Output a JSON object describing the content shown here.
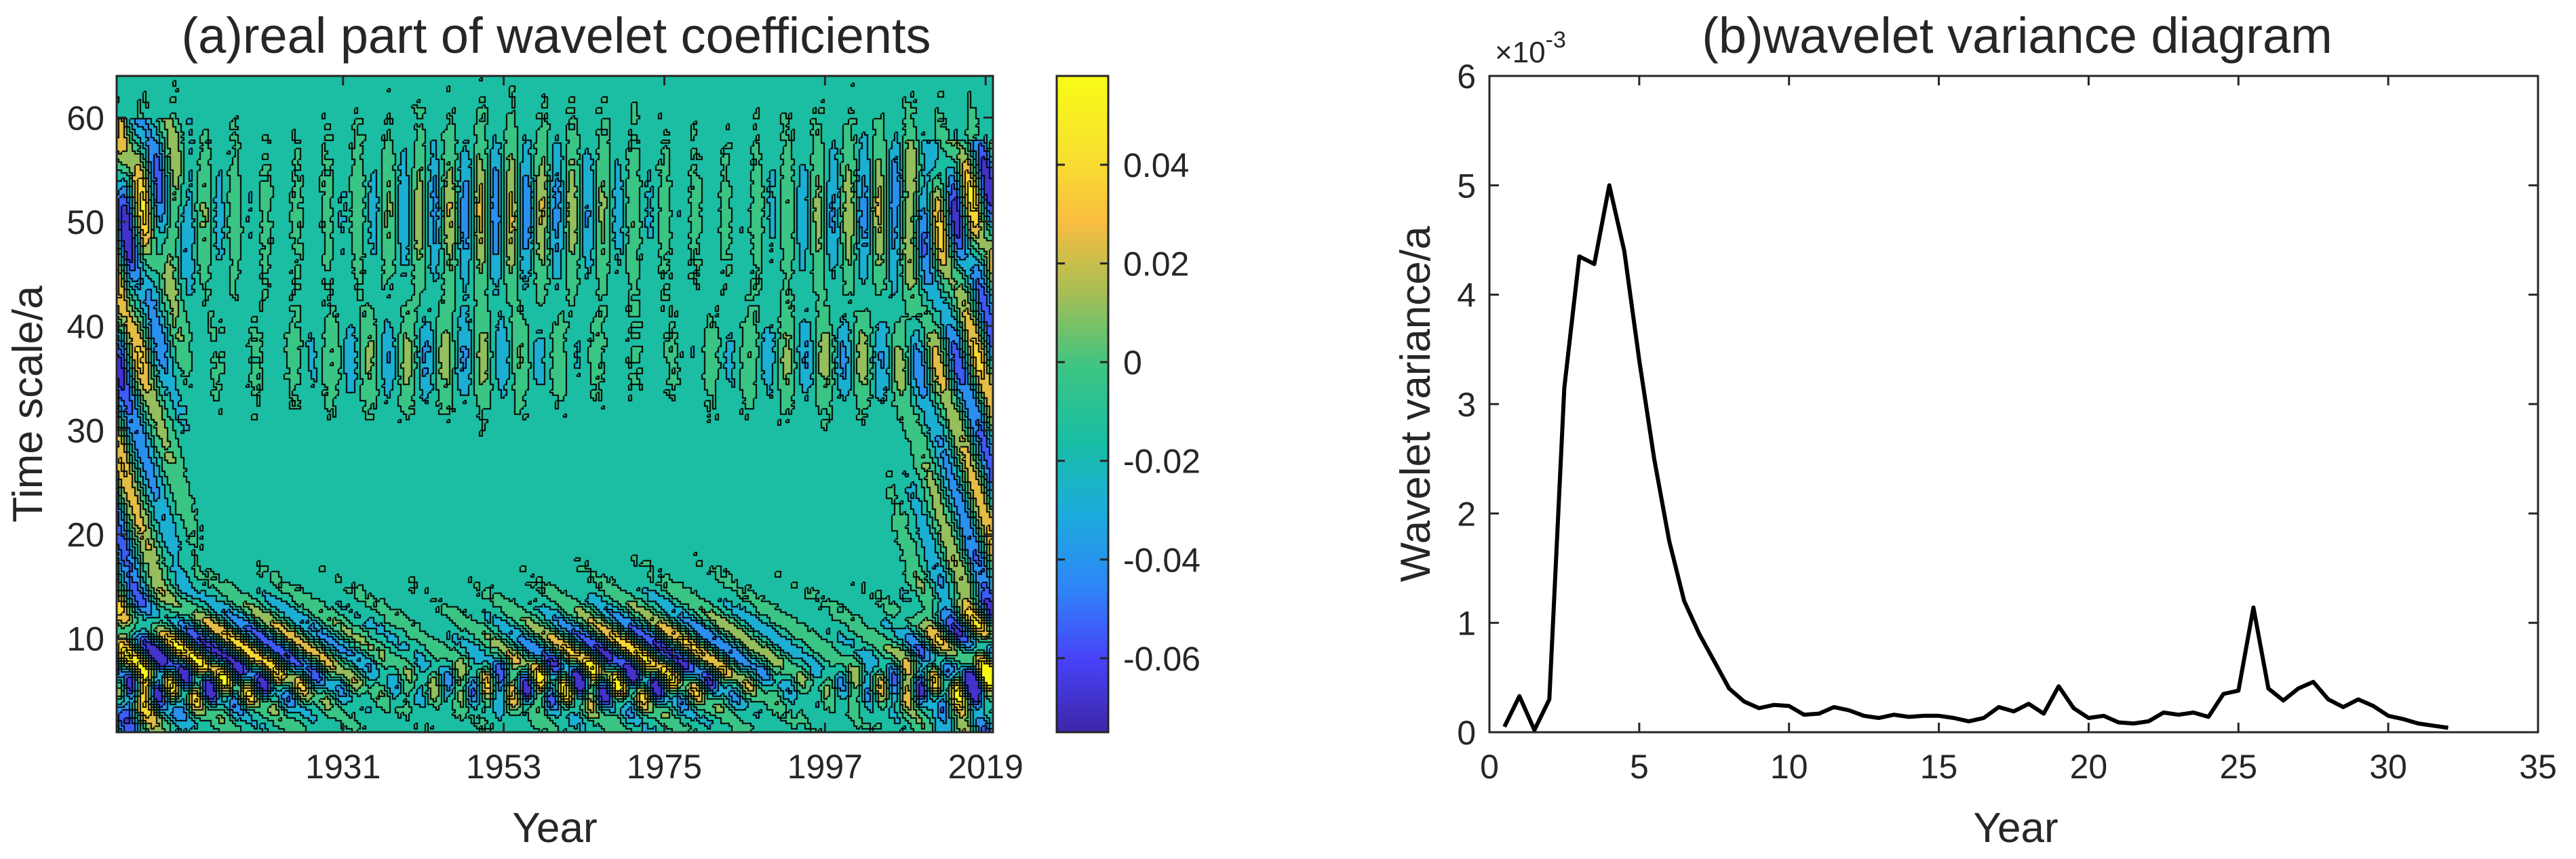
{
  "colors": {
    "axis": "#262626",
    "contour_line": "#000000",
    "line": "#000000",
    "background": "#ffffff",
    "parula": [
      "#3e26a8",
      "#4743f9",
      "#2e87f7",
      "#1cacdc",
      "#19bea4",
      "#3cc583",
      "#a4be55",
      "#f9bd40",
      "#f7e32c",
      "#f9fb15"
    ]
  },
  "chart_data": [
    {
      "type": "heatmap",
      "title": "(a)real part of wavelet coefficients",
      "xlabel": "Year",
      "ylabel": "Time scale/a",
      "xlim": [
        1900,
        2020
      ],
      "ylim": [
        1,
        64
      ],
      "xticks": [
        1931,
        1953,
        1975,
        1997,
        2019
      ],
      "yticks": [
        10,
        20,
        30,
        40,
        50,
        60
      ],
      "colorbar": {
        "range": [
          -0.075,
          0.058
        ],
        "ticks": [
          -0.06,
          -0.04,
          -0.02,
          0,
          0.02,
          0.04
        ],
        "tick_labels": [
          "-0.06",
          "-0.04",
          "-0.02",
          "0",
          "0.02",
          "0.04"
        ]
      },
      "background_value": -0.012,
      "oscillation_bands": [
        {
          "center_scale": 8,
          "halfwidth": 5,
          "period_years": 8.8,
          "amplitude": 0.058,
          "tilt": 2
        },
        {
          "center_scale": 5.5,
          "halfwidth": 2,
          "period_years": 3.6,
          "amplitude": 0.05,
          "tilt": 0
        },
        {
          "center_scale": 51,
          "halfwidth": 6.5,
          "period_years": 4.2,
          "amplitude": 0.034,
          "tilt": 0
        },
        {
          "center_scale": 37,
          "halfwidth": 4,
          "period_years": 5.2,
          "amplitude": 0.026,
          "tilt": 0
        }
      ],
      "edge_features": [
        {
          "x_range": [
            1900,
            1912
          ],
          "scale_range": [
            1,
            60
          ],
          "amplitude": 0.05,
          "period_years": 7
        },
        {
          "x_range": [
            2005,
            2020
          ],
          "scale_range": [
            1,
            58
          ],
          "amplitude": 0.05,
          "period_years": 6
        }
      ]
    },
    {
      "type": "line",
      "title": "(b)wavelet variance diagram",
      "xlabel": "Year",
      "ylabel": "Wavelet variance/a",
      "xlim": [
        0,
        35
      ],
      "ylim": [
        0,
        6
      ],
      "xticks": [
        0,
        5,
        10,
        15,
        20,
        25,
        30,
        35
      ],
      "yticks": [
        0,
        1,
        2,
        3,
        4,
        5,
        6
      ],
      "y_exponent_base": "×10",
      "y_exponent_power": "-3",
      "series": [
        {
          "name": "wavelet variance (×10^-3)",
          "x": [
            0.5,
            1,
            1.5,
            2,
            2.5,
            3,
            3.5,
            4,
            4.5,
            5,
            5.5,
            6,
            6.5,
            7,
            7.5,
            8,
            8.5,
            9,
            9.5,
            10,
            10.5,
            11,
            11.5,
            12,
            12.5,
            13,
            13.5,
            14,
            14.5,
            15,
            15.5,
            16,
            16.5,
            17,
            17.5,
            18,
            18.5,
            19,
            19.5,
            20,
            20.5,
            21,
            21.5,
            22,
            22.5,
            23,
            23.5,
            24,
            24.5,
            25,
            25.5,
            26,
            26.5,
            27,
            27.5,
            28,
            28.5,
            29,
            29.5,
            30,
            30.5,
            31,
            31.5,
            32
          ],
          "values": [
            0.05,
            0.33,
            0.02,
            0.3,
            3.15,
            4.35,
            4.28,
            5.0,
            4.4,
            3.4,
            2.5,
            1.75,
            1.2,
            0.9,
            0.65,
            0.4,
            0.28,
            0.22,
            0.25,
            0.24,
            0.16,
            0.17,
            0.23,
            0.2,
            0.15,
            0.13,
            0.16,
            0.14,
            0.15,
            0.15,
            0.13,
            0.1,
            0.13,
            0.23,
            0.19,
            0.26,
            0.17,
            0.42,
            0.22,
            0.13,
            0.15,
            0.09,
            0.08,
            0.1,
            0.18,
            0.16,
            0.18,
            0.14,
            0.35,
            0.38,
            1.14,
            0.4,
            0.29,
            0.4,
            0.46,
            0.3,
            0.23,
            0.3,
            0.24,
            0.15,
            0.12,
            0.08,
            0.06,
            0.04
          ]
        }
      ]
    }
  ]
}
